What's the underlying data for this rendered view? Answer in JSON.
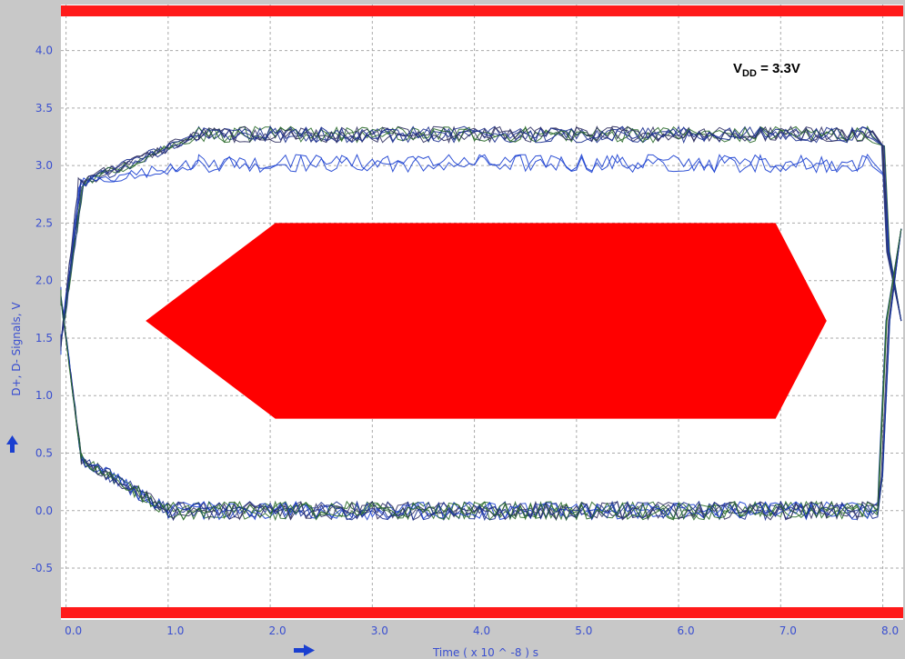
{
  "chart_data": {
    "type": "line",
    "title": "",
    "xlabel": "Time  ( x 10 ^ -8 ) s",
    "ylabel": "D+, D- Signals, V",
    "xlim": [
      -0.05,
      8.2
    ],
    "ylim": [
      -0.95,
      4.4
    ],
    "x_ticks": [
      "0.0",
      "1.0",
      "2.0",
      "3.0",
      "4.0",
      "5.0",
      "6.0",
      "7.0",
      "8.0"
    ],
    "y_ticks": [
      "-0.5",
      "0.0",
      "0.5",
      "1.0",
      "1.5",
      "2.0",
      "2.5",
      "3.0",
      "3.5",
      "4.0"
    ],
    "grid": true,
    "annotation": {
      "main": "V",
      "sub": "DD",
      "rest": " = 3.3V"
    },
    "eye_mask": {
      "polygon": [
        [
          0.78,
          1.65
        ],
        [
          2.05,
          2.5
        ],
        [
          6.95,
          2.5
        ],
        [
          7.45,
          1.65
        ],
        [
          6.95,
          0.8
        ],
        [
          2.05,
          0.8
        ]
      ],
      "color": "#ff0000"
    },
    "limit_bars": {
      "color": "#ff1a1a"
    },
    "series_colors": [
      "#1a2f8f",
      "#2a6a2a",
      "#1a3fd0",
      "#303060"
    ],
    "eye_levels": {
      "high": 3.27,
      "low": 0.0,
      "crossing": 1.65
    }
  }
}
